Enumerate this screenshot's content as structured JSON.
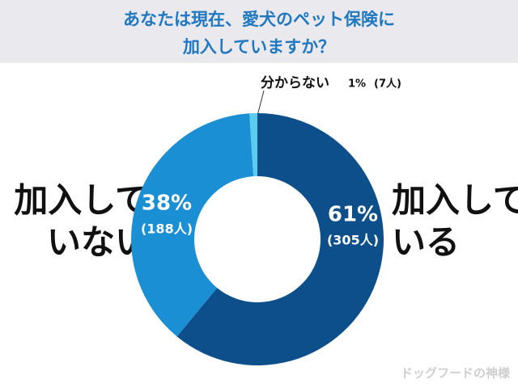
{
  "chart_data": {
    "type": "donut",
    "title": [
      "あなたは現在、愛犬のペット保険に",
      "加入していますか？"
    ],
    "categories": [
      "加入している",
      "加入していない",
      "分からない"
    ],
    "values": [
      61,
      38,
      1
    ],
    "value_labels": [
      "61%",
      "38%",
      "1%"
    ],
    "counts": [
      305,
      188,
      7
    ],
    "count_labels": [
      "(305人)",
      "(188人)",
      "(7人)"
    ],
    "colors": [
      "#0d4f8b",
      "#1a8fd3",
      "#5ccbf0"
    ],
    "watermark": "ドッグフードの神様"
  }
}
